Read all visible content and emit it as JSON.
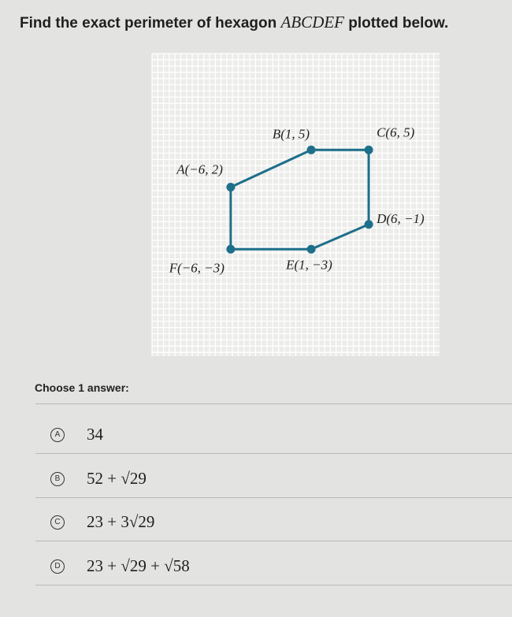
{
  "question": {
    "before": "Find the exact perimeter of hexagon",
    "shape": "ABCDEF",
    "after": "plotted below."
  },
  "points": [
    {
      "label": "A(−6, 2)",
      "x": -6,
      "y": 2
    },
    {
      "label": "B(1, 5)",
      "x": 1,
      "y": 5
    },
    {
      "label": "C(6, 5)",
      "x": 6,
      "y": 5
    },
    {
      "label": "D(6, −1)",
      "x": 6,
      "y": -1
    },
    {
      "label": "E(1, −3)",
      "x": 1,
      "y": -3
    },
    {
      "label": "F(−6, −3)",
      "x": -6,
      "y": -3
    }
  ],
  "prompt": "Choose 1 answer:",
  "answers": [
    {
      "letter": "A",
      "text": "34"
    },
    {
      "letter": "B",
      "text": "52 + √29"
    },
    {
      "letter": "C",
      "text": "23 + 3√29"
    },
    {
      "letter": "D",
      "text": "23 + √29 + √58"
    }
  ]
}
